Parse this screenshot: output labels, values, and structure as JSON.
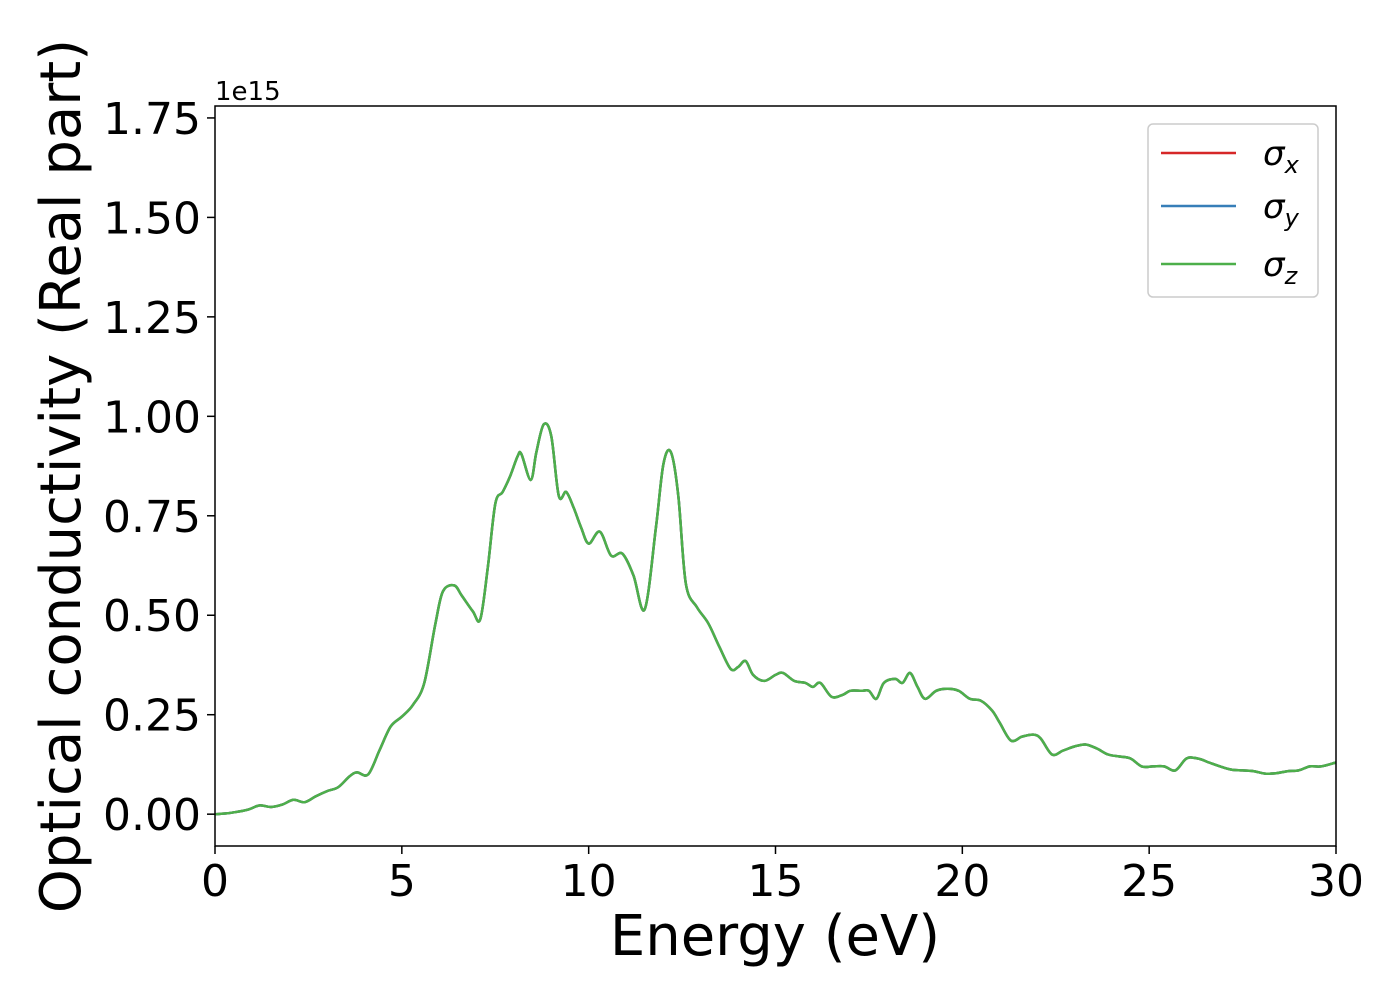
{
  "chart_data": {
    "type": "line",
    "xlabel": "Energy (eV)",
    "ylabel": "Optical conductivity (Real part)",
    "y_offset_label": "1e15",
    "xlim": [
      0,
      30
    ],
    "ylim": [
      -0.08,
      1.78
    ],
    "x_ticks": [
      0,
      5,
      10,
      15,
      20,
      25,
      30
    ],
    "x_tick_labels": [
      "0",
      "5",
      "10",
      "15",
      "20",
      "25",
      "30"
    ],
    "y_ticks": [
      0.0,
      0.25,
      0.5,
      0.75,
      1.0,
      1.25,
      1.5,
      1.75
    ],
    "y_tick_labels": [
      "0.00",
      "0.25",
      "0.50",
      "0.75",
      "1.00",
      "1.25",
      "1.50",
      "1.75"
    ],
    "grid": false,
    "legend_position": "top-right",
    "x": [
      0,
      0.3,
      0.6,
      0.9,
      1.2,
      1.5,
      1.8,
      2.1,
      2.4,
      2.7,
      3.0,
      3.3,
      3.6,
      3.8,
      4.1,
      4.4,
      4.7,
      5.0,
      5.3,
      5.6,
      5.9,
      6.1,
      6.4,
      6.6,
      6.9,
      7.1,
      7.3,
      7.5,
      7.7,
      7.9,
      8.1,
      8.2,
      8.45,
      8.6,
      8.8,
      9.0,
      9.2,
      9.4,
      9.6,
      9.8,
      10.0,
      10.3,
      10.6,
      10.9,
      11.2,
      11.5,
      11.8,
      12.0,
      12.2,
      12.4,
      12.6,
      12.9,
      13.2,
      13.5,
      13.8,
      14.0,
      14.2,
      14.4,
      14.7,
      15.0,
      15.2,
      15.5,
      15.8,
      16.0,
      16.2,
      16.5,
      16.8,
      17.0,
      17.3,
      17.5,
      17.7,
      17.9,
      18.2,
      18.4,
      18.6,
      18.8,
      19.0,
      19.3,
      19.6,
      19.9,
      20.2,
      20.5,
      20.8,
      21.0,
      21.3,
      21.6,
      21.9,
      22.1,
      22.4,
      22.7,
      23.0,
      23.3,
      23.6,
      23.9,
      24.2,
      24.5,
      24.8,
      25.1,
      25.4,
      25.7,
      26.0,
      26.3,
      26.6,
      26.9,
      27.2,
      27.5,
      27.8,
      28.1,
      28.4,
      28.7,
      29.0,
      29.3,
      29.6,
      30.0
    ],
    "series": [
      {
        "name": "σx",
        "color": "#d62728",
        "values": [
          0.0,
          0.002,
          0.006,
          0.012,
          0.022,
          0.018,
          0.024,
          0.036,
          0.03,
          0.045,
          0.058,
          0.068,
          0.095,
          0.105,
          0.1,
          0.16,
          0.22,
          0.245,
          0.275,
          0.33,
          0.48,
          0.56,
          0.575,
          0.55,
          0.51,
          0.49,
          0.62,
          0.78,
          0.81,
          0.85,
          0.9,
          0.905,
          0.84,
          0.91,
          0.98,
          0.95,
          0.8,
          0.81,
          0.77,
          0.72,
          0.68,
          0.71,
          0.65,
          0.655,
          0.6,
          0.515,
          0.72,
          0.88,
          0.91,
          0.8,
          0.58,
          0.52,
          0.48,
          0.42,
          0.365,
          0.37,
          0.385,
          0.35,
          0.335,
          0.35,
          0.355,
          0.335,
          0.33,
          0.32,
          0.33,
          0.295,
          0.3,
          0.31,
          0.31,
          0.31,
          0.29,
          0.33,
          0.34,
          0.33,
          0.355,
          0.32,
          0.29,
          0.31,
          0.315,
          0.31,
          0.29,
          0.285,
          0.26,
          0.23,
          0.185,
          0.195,
          0.2,
          0.19,
          0.15,
          0.16,
          0.17,
          0.175,
          0.165,
          0.15,
          0.145,
          0.14,
          0.12,
          0.12,
          0.12,
          0.11,
          0.14,
          0.14,
          0.13,
          0.12,
          0.112,
          0.11,
          0.108,
          0.102,
          0.103,
          0.108,
          0.11,
          0.12,
          0.12,
          0.13
        ]
      },
      {
        "name": "σy",
        "color": "#377eb8",
        "values": [
          0.0,
          0.002,
          0.006,
          0.012,
          0.022,
          0.018,
          0.024,
          0.036,
          0.03,
          0.045,
          0.058,
          0.068,
          0.095,
          0.105,
          0.1,
          0.16,
          0.22,
          0.245,
          0.275,
          0.33,
          0.48,
          0.56,
          0.575,
          0.55,
          0.51,
          0.49,
          0.62,
          0.78,
          0.81,
          0.85,
          0.9,
          0.905,
          0.84,
          0.91,
          0.98,
          0.95,
          0.8,
          0.81,
          0.77,
          0.72,
          0.68,
          0.71,
          0.65,
          0.655,
          0.6,
          0.515,
          0.72,
          0.88,
          0.91,
          0.8,
          0.58,
          0.52,
          0.48,
          0.42,
          0.365,
          0.37,
          0.385,
          0.35,
          0.335,
          0.35,
          0.355,
          0.335,
          0.33,
          0.32,
          0.33,
          0.295,
          0.3,
          0.31,
          0.31,
          0.31,
          0.29,
          0.33,
          0.34,
          0.33,
          0.355,
          0.32,
          0.29,
          0.31,
          0.315,
          0.31,
          0.29,
          0.285,
          0.26,
          0.23,
          0.185,
          0.195,
          0.2,
          0.19,
          0.15,
          0.16,
          0.17,
          0.175,
          0.165,
          0.15,
          0.145,
          0.14,
          0.12,
          0.12,
          0.12,
          0.11,
          0.14,
          0.14,
          0.13,
          0.12,
          0.112,
          0.11,
          0.108,
          0.102,
          0.103,
          0.108,
          0.11,
          0.12,
          0.12,
          0.13
        ]
      },
      {
        "name": "σz",
        "color": "#4daf4a",
        "values": [
          0.0,
          0.002,
          0.006,
          0.012,
          0.022,
          0.018,
          0.024,
          0.036,
          0.03,
          0.045,
          0.058,
          0.068,
          0.095,
          0.105,
          0.1,
          0.16,
          0.22,
          0.245,
          0.275,
          0.33,
          0.48,
          0.56,
          0.575,
          0.55,
          0.51,
          0.49,
          0.62,
          0.78,
          0.81,
          0.85,
          0.9,
          0.905,
          0.84,
          0.91,
          0.98,
          0.95,
          0.8,
          0.81,
          0.77,
          0.72,
          0.68,
          0.71,
          0.65,
          0.655,
          0.6,
          0.515,
          0.72,
          0.88,
          0.91,
          0.8,
          0.58,
          0.52,
          0.48,
          0.42,
          0.365,
          0.37,
          0.385,
          0.35,
          0.335,
          0.35,
          0.355,
          0.335,
          0.33,
          0.32,
          0.33,
          0.295,
          0.3,
          0.31,
          0.31,
          0.31,
          0.29,
          0.33,
          0.34,
          0.33,
          0.355,
          0.32,
          0.29,
          0.31,
          0.315,
          0.31,
          0.29,
          0.285,
          0.26,
          0.23,
          0.185,
          0.195,
          0.2,
          0.19,
          0.15,
          0.16,
          0.17,
          0.175,
          0.165,
          0.15,
          0.145,
          0.14,
          0.12,
          0.12,
          0.12,
          0.11,
          0.14,
          0.14,
          0.13,
          0.12,
          0.112,
          0.11,
          0.108,
          0.102,
          0.103,
          0.108,
          0.11,
          0.12,
          0.12,
          0.13
        ]
      }
    ],
    "legend": [
      {
        "symbol": "σ",
        "subscript": "x",
        "color": "#d62728"
      },
      {
        "symbol": "σ",
        "subscript": "y",
        "color": "#377eb8"
      },
      {
        "symbol": "σ",
        "subscript": "z",
        "color": "#4daf4a"
      }
    ]
  }
}
